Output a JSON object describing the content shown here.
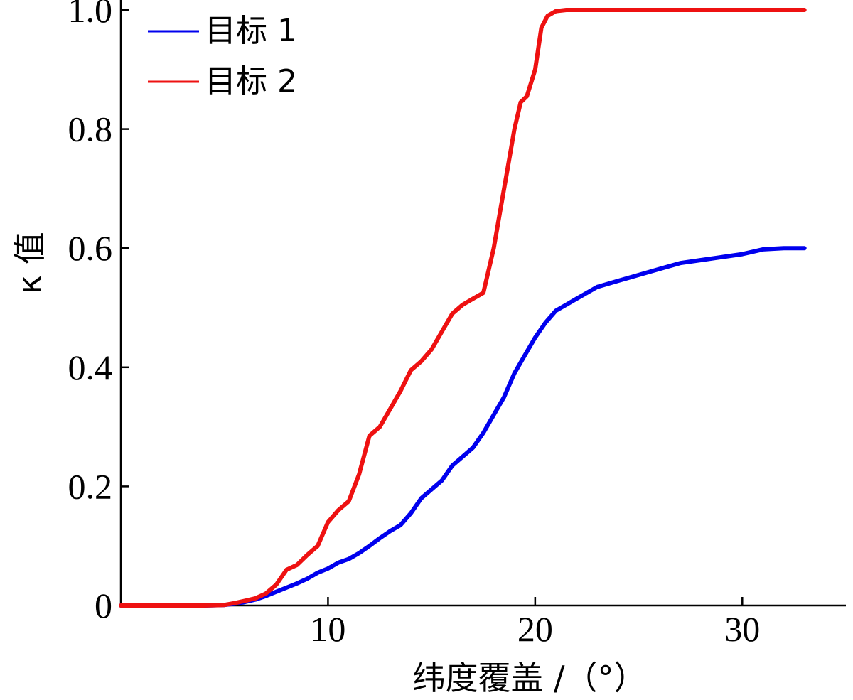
{
  "chart_data": {
    "type": "line",
    "title": "",
    "xlabel": "纬度覆盖 /（°）",
    "ylabel": "κ 值",
    "xlim": [
      0,
      35
    ],
    "ylim": [
      0,
      1.0
    ],
    "grid": false,
    "legend_position": "top-left",
    "x_ticks": [
      10,
      20,
      30
    ],
    "x_tick_labels": [
      "10",
      "20",
      "30"
    ],
    "y_ticks": [
      0,
      0.2,
      0.4,
      0.6,
      0.8,
      1.0
    ],
    "y_tick_labels": [
      "0",
      "0.2",
      "0.4",
      "0.6",
      "0.8",
      "1.0"
    ],
    "series": [
      {
        "name": "目标 1",
        "color": "#0000ee",
        "x": [
          0,
          4.0,
          5.0,
          5.5,
          6.0,
          6.5,
          7.0,
          7.5,
          8.0,
          8.5,
          9.0,
          9.5,
          10.0,
          10.5,
          11.0,
          11.5,
          12.0,
          12.5,
          13.0,
          13.5,
          14.0,
          14.5,
          15.0,
          15.5,
          16.0,
          16.5,
          17.0,
          17.5,
          18.0,
          18.5,
          19.0,
          19.5,
          20.0,
          20.5,
          21.0,
          21.5,
          22.0,
          23.0,
          24.0,
          25.0,
          26.0,
          27.0,
          28.0,
          29.0,
          30.0,
          31.0,
          32.0,
          33.0
        ],
        "y": [
          0,
          0,
          0.001,
          0.003,
          0.006,
          0.01,
          0.016,
          0.023,
          0.03,
          0.037,
          0.045,
          0.055,
          0.062,
          0.072,
          0.078,
          0.088,
          0.1,
          0.113,
          0.125,
          0.135,
          0.155,
          0.18,
          0.195,
          0.21,
          0.235,
          0.25,
          0.265,
          0.29,
          0.32,
          0.35,
          0.39,
          0.42,
          0.45,
          0.475,
          0.495,
          0.505,
          0.515,
          0.535,
          0.545,
          0.555,
          0.565,
          0.575,
          0.58,
          0.585,
          0.59,
          0.598,
          0.6,
          0.6
        ]
      },
      {
        "name": "目标 2",
        "color": "#ee1111",
        "x": [
          0,
          4.0,
          5.0,
          5.5,
          6.0,
          6.5,
          7.0,
          7.5,
          8.0,
          8.5,
          9.0,
          9.5,
          10.0,
          10.5,
          11.0,
          11.5,
          12.0,
          12.5,
          13.0,
          13.5,
          14.0,
          14.5,
          15.0,
          15.5,
          16.0,
          16.5,
          17.0,
          17.5,
          18.0,
          18.3,
          18.6,
          19.0,
          19.3,
          19.6,
          20.0,
          20.3,
          20.6,
          21.0,
          21.5,
          22.0,
          25.0,
          30.0,
          33.0
        ],
        "y": [
          0,
          0,
          0.001,
          0.004,
          0.008,
          0.012,
          0.02,
          0.035,
          0.06,
          0.068,
          0.085,
          0.1,
          0.14,
          0.16,
          0.175,
          0.22,
          0.285,
          0.3,
          0.33,
          0.36,
          0.395,
          0.41,
          0.43,
          0.46,
          0.49,
          0.505,
          0.515,
          0.525,
          0.6,
          0.66,
          0.72,
          0.8,
          0.845,
          0.855,
          0.9,
          0.97,
          0.99,
          0.998,
          1.0,
          1.0,
          1.0,
          1.0,
          1.0
        ]
      }
    ]
  }
}
